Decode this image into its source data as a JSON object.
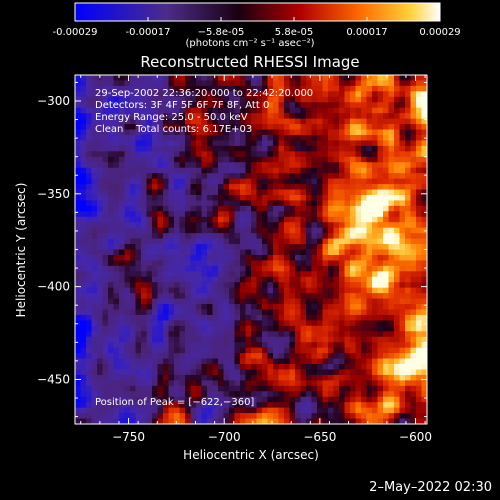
{
  "colorbar": {
    "ticks": [
      "-0.00029",
      "-0.00017",
      "−5.8e-05",
      "5.8e-05",
      "0.00017",
      "0.00029"
    ],
    "units": "(photons cm⁻² s⁻¹ asec⁻²)",
    "colors": [
      "#0000ff",
      "#4b2c8a",
      "#1a0010",
      "#b40000",
      "#ff6a00",
      "#ffd23a",
      "#ffffff"
    ]
  },
  "chart_data": {
    "type": "heatmap",
    "title": "Reconstructed RHESSI Image",
    "xlabel": "Heliocentric X (arcsec)",
    "ylabel": "Heliocentric Y (arcsec)",
    "xlim": [
      -778,
      -594
    ],
    "ylim": [
      -474,
      -286
    ],
    "x_ticks": [
      -750,
      -700,
      -650,
      -600
    ],
    "y_ticks": [
      -300,
      -350,
      -400,
      -450
    ],
    "x_tick_labels": [
      "−750",
      "−700",
      "−650",
      "−600"
    ],
    "y_tick_labels": [
      "−300",
      "−350",
      "−400",
      "−450"
    ],
    "color_range": [
      -0.00029,
      0.00029
    ],
    "peak": [
      -622,
      -360
    ]
  },
  "info": {
    "line1": "29-Sep-2002 22:36:20.000 to 22:42:20.000",
    "line2": "Detectors: 3F 4F 5F 6F 7F 8F, Att 0",
    "line3": "Energy Range: 25.0 - 50.0 keV",
    "line4": "Clean    Total counts: 6.17E+03",
    "peak": "Position of Peak = [−622,−360]"
  },
  "timestamp": "2–May–2022 02:30"
}
